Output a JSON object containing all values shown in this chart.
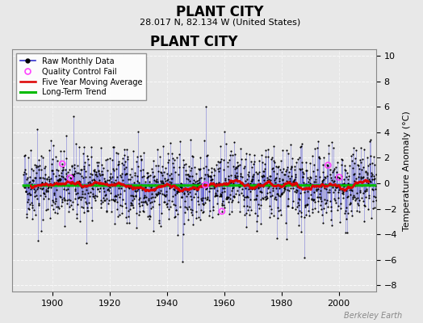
{
  "title": "PLANT CITY",
  "subtitle": "28.017 N, 82.134 W (United States)",
  "ylabel": "Temperature Anomaly (°C)",
  "watermark": "Berkeley Earth",
  "xlim": [
    1886,
    2013
  ],
  "ylim": [
    -8.5,
    10.5
  ],
  "yticks": [
    -8,
    -6,
    -4,
    -2,
    0,
    2,
    4,
    6,
    8,
    10
  ],
  "xticks": [
    1900,
    1920,
    1940,
    1960,
    1980,
    2000
  ],
  "bg_color": "#e8e8e8",
  "plot_bg_color": "#e8e8e8",
  "raw_color": "#3333cc",
  "qc_color": "#ff44ff",
  "moving_avg_color": "#dd0000",
  "trend_color": "#00bb00",
  "seed": 42,
  "years_start": 1890,
  "years_end": 2013
}
